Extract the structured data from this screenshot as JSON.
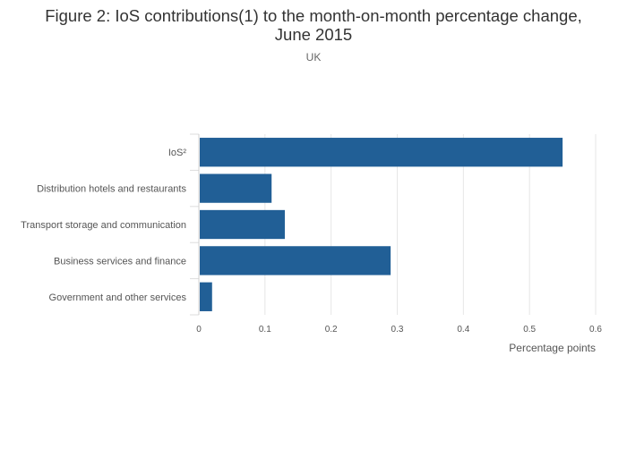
{
  "chart_data": {
    "type": "bar",
    "orientation": "horizontal",
    "title": "Figure 2: IoS contributions(1) to the month-on-month percentage change, June 2015",
    "title_lines": [
      "Figure 2: IoS contributions(1) to the month-on-month percentage change,",
      "June 2015"
    ],
    "subtitle": "UK",
    "categories": [
      "IoS²",
      "Distribution hotels and restaurants",
      "Transport storage and communication",
      "Business services and finance",
      "Government and other services"
    ],
    "values": [
      0.55,
      0.11,
      0.13,
      0.29,
      0.02
    ],
    "xlabel": "Percentage points",
    "ylabel": "",
    "xlim": [
      0,
      0.6
    ],
    "xticks": [
      0,
      0.1,
      0.2,
      0.3,
      0.4,
      0.5,
      0.6
    ],
    "xtick_labels": [
      "0",
      "0.1",
      "0.2",
      "0.3",
      "0.4",
      "0.5",
      "0.6"
    ],
    "grid": "vertical",
    "bar_color": "#215f96",
    "grid_color": "#e6e6e6"
  }
}
